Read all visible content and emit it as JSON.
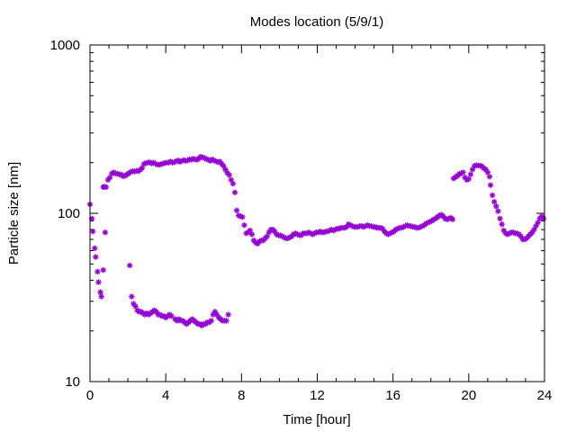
{
  "chart_data": {
    "type": "scatter",
    "title": "Modes location (5/9/1)",
    "xlabel": "Time [hour]",
    "ylabel": "Particle size [nm]",
    "xlim": [
      0,
      24
    ],
    "ylim": [
      10,
      1000
    ],
    "y_scale": "log",
    "grid": false,
    "legend": "none",
    "marker_color": "#9400d3",
    "marker": "asterisk",
    "x_ticks": [
      0,
      4,
      8,
      12,
      16,
      20,
      24
    ],
    "x_tick_labels": [
      "0",
      "4",
      "8",
      "12",
      "16",
      "20",
      "24"
    ],
    "y_ticks": [
      10,
      100,
      1000
    ],
    "y_tick_labels": [
      "10",
      "100",
      "1000"
    ],
    "series": [
      {
        "points": [
          [
            0.0,
            113
          ],
          [
            0.1,
            93
          ],
          [
            0.15,
            78
          ],
          [
            0.25,
            62
          ],
          [
            0.3,
            55
          ],
          [
            0.4,
            45
          ],
          [
            0.45,
            39
          ],
          [
            0.55,
            34
          ],
          [
            0.6,
            32
          ],
          [
            0.7,
            46
          ],
          [
            0.8,
            77
          ],
          [
            0.7,
            143
          ],
          [
            0.75,
            144
          ],
          [
            0.85,
            143
          ],
          [
            0.95,
            158
          ],
          [
            1.05,
            163
          ],
          [
            1.15,
            172
          ],
          [
            1.25,
            175
          ],
          [
            1.35,
            172
          ],
          [
            1.45,
            172
          ],
          [
            1.55,
            170
          ],
          [
            1.65,
            170
          ],
          [
            1.75,
            166
          ],
          [
            1.85,
            167
          ],
          [
            1.95,
            170
          ],
          [
            2.05,
            173
          ],
          [
            2.15,
            176
          ],
          [
            2.25,
            178
          ],
          [
            2.35,
            177
          ],
          [
            2.45,
            179
          ],
          [
            2.55,
            178
          ],
          [
            2.65,
            181
          ],
          [
            2.75,
            186
          ],
          [
            2.85,
            196
          ],
          [
            2.95,
            199
          ],
          [
            3.05,
            200
          ],
          [
            3.15,
            201
          ],
          [
            3.25,
            198
          ],
          [
            3.35,
            200
          ],
          [
            3.45,
            197
          ],
          [
            3.55,
            195
          ],
          [
            3.65,
            194
          ],
          [
            3.75,
            196
          ],
          [
            3.85,
            197
          ],
          [
            3.95,
            199
          ],
          [
            4.05,
            200
          ],
          [
            4.15,
            200
          ],
          [
            4.25,
            203
          ],
          [
            4.35,
            200
          ],
          [
            4.45,
            201
          ],
          [
            4.55,
            204
          ],
          [
            4.65,
            206
          ],
          [
            4.75,
            202
          ],
          [
            4.85,
            205
          ],
          [
            4.95,
            207
          ],
          [
            5.05,
            205
          ],
          [
            5.15,
            206
          ],
          [
            5.25,
            209
          ],
          [
            5.35,
            208
          ],
          [
            5.45,
            211
          ],
          [
            5.55,
            209
          ],
          [
            5.65,
            208
          ],
          [
            5.75,
            212
          ],
          [
            5.85,
            217
          ],
          [
            5.95,
            215
          ],
          [
            6.05,
            213
          ],
          [
            6.15,
            210
          ],
          [
            6.25,
            208
          ],
          [
            6.35,
            205
          ],
          [
            6.45,
            209
          ],
          [
            6.55,
            206
          ],
          [
            6.65,
            204
          ],
          [
            6.75,
            201
          ],
          [
            6.85,
            203
          ],
          [
            6.95,
            197
          ],
          [
            7.05,
            191
          ],
          [
            7.15,
            182
          ],
          [
            7.25,
            174
          ],
          [
            7.35,
            169
          ],
          [
            7.45,
            158
          ],
          [
            7.55,
            150
          ],
          [
            7.65,
            133
          ],
          [
            2.1,
            49
          ],
          [
            2.2,
            32
          ],
          [
            2.3,
            29
          ],
          [
            2.4,
            28
          ],
          [
            2.5,
            26.5
          ],
          [
            2.6,
            26
          ],
          [
            2.7,
            26
          ],
          [
            2.8,
            25.5
          ],
          [
            2.9,
            25
          ],
          [
            3.0,
            25.5
          ],
          [
            3.1,
            25
          ],
          [
            3.2,
            25.5
          ],
          [
            3.3,
            26
          ],
          [
            3.4,
            26.5
          ],
          [
            3.5,
            26
          ],
          [
            3.6,
            25
          ],
          [
            3.7,
            25
          ],
          [
            3.8,
            24.5
          ],
          [
            3.9,
            24.5
          ],
          [
            4.0,
            24
          ],
          [
            4.1,
            24.5
          ],
          [
            4.2,
            25
          ],
          [
            4.3,
            24.5
          ],
          [
            4.5,
            23.5
          ],
          [
            4.6,
            23
          ],
          [
            4.7,
            23.5
          ],
          [
            4.8,
            23
          ],
          [
            4.9,
            23
          ],
          [
            5.0,
            22.5
          ],
          [
            5.1,
            22
          ],
          [
            5.2,
            22.5
          ],
          [
            5.3,
            23
          ],
          [
            5.4,
            23.5
          ],
          [
            5.5,
            23
          ],
          [
            5.6,
            22.5
          ],
          [
            5.7,
            22
          ],
          [
            5.8,
            22
          ],
          [
            5.9,
            21.5
          ],
          [
            6.0,
            22
          ],
          [
            6.1,
            22
          ],
          [
            6.2,
            22.5
          ],
          [
            6.3,
            22.5
          ],
          [
            6.4,
            23
          ],
          [
            6.5,
            25
          ],
          [
            6.6,
            26
          ],
          [
            6.7,
            25
          ],
          [
            6.8,
            24
          ],
          [
            6.9,
            23.5
          ],
          [
            7.0,
            23
          ],
          [
            7.1,
            23
          ],
          [
            7.2,
            23
          ],
          [
            7.3,
            25
          ],
          [
            7.75,
            104
          ],
          [
            7.85,
            97
          ],
          [
            7.95,
            96
          ],
          [
            8.05,
            95
          ],
          [
            8.15,
            85
          ],
          [
            8.25,
            76
          ],
          [
            8.35,
            77
          ],
          [
            8.45,
            79
          ],
          [
            8.55,
            75
          ],
          [
            8.65,
            69
          ],
          [
            8.75,
            67
          ],
          [
            8.85,
            66
          ],
          [
            8.95,
            68
          ],
          [
            9.05,
            69
          ],
          [
            9.15,
            69
          ],
          [
            9.25,
            71
          ],
          [
            9.35,
            73
          ],
          [
            9.45,
            77
          ],
          [
            9.55,
            80
          ],
          [
            9.65,
            80
          ],
          [
            9.75,
            78
          ],
          [
            9.85,
            75
          ],
          [
            9.95,
            74
          ],
          [
            10.05,
            74
          ],
          [
            10.15,
            73
          ],
          [
            10.25,
            72
          ],
          [
            10.35,
            71
          ],
          [
            10.45,
            71
          ],
          [
            10.55,
            72
          ],
          [
            10.65,
            73
          ],
          [
            10.75,
            75
          ],
          [
            10.85,
            76
          ],
          [
            10.95,
            75
          ],
          [
            11.05,
            74
          ],
          [
            11.15,
            74
          ],
          [
            11.25,
            76
          ],
          [
            11.35,
            76
          ],
          [
            11.45,
            76
          ],
          [
            11.55,
            77
          ],
          [
            11.65,
            76
          ],
          [
            11.75,
            75
          ],
          [
            11.85,
            76
          ],
          [
            11.95,
            77
          ],
          [
            12.05,
            77
          ],
          [
            12.15,
            78
          ],
          [
            12.25,
            77
          ],
          [
            12.35,
            77
          ],
          [
            12.45,
            78
          ],
          [
            12.55,
            78
          ],
          [
            12.65,
            79
          ],
          [
            12.75,
            80
          ],
          [
            12.85,
            79
          ],
          [
            12.95,
            80
          ],
          [
            13.05,
            81
          ],
          [
            13.15,
            81
          ],
          [
            13.25,
            82
          ],
          [
            13.35,
            82
          ],
          [
            13.45,
            82
          ],
          [
            13.55,
            83
          ],
          [
            13.65,
            86
          ],
          [
            13.75,
            85
          ],
          [
            13.85,
            84
          ],
          [
            13.95,
            83
          ],
          [
            14.05,
            83
          ],
          [
            14.15,
            83
          ],
          [
            14.25,
            84
          ],
          [
            14.35,
            84
          ],
          [
            14.45,
            83
          ],
          [
            14.55,
            84
          ],
          [
            14.65,
            85
          ],
          [
            14.75,
            84
          ],
          [
            14.85,
            84
          ],
          [
            14.95,
            83
          ],
          [
            15.05,
            83
          ],
          [
            15.15,
            82
          ],
          [
            15.25,
            82
          ],
          [
            15.35,
            82
          ],
          [
            15.45,
            81
          ],
          [
            15.55,
            78
          ],
          [
            15.65,
            76
          ],
          [
            15.75,
            75
          ],
          [
            15.85,
            76
          ],
          [
            15.95,
            77
          ],
          [
            16.05,
            78
          ],
          [
            16.15,
            80
          ],
          [
            16.25,
            81
          ],
          [
            16.35,
            82
          ],
          [
            16.45,
            82
          ],
          [
            16.55,
            83
          ],
          [
            16.65,
            84
          ],
          [
            16.75,
            85
          ],
          [
            16.85,
            84
          ],
          [
            16.95,
            84
          ],
          [
            17.05,
            83
          ],
          [
            17.15,
            83
          ],
          [
            17.25,
            82
          ],
          [
            17.35,
            82
          ],
          [
            17.45,
            83
          ],
          [
            17.55,
            84
          ],
          [
            17.65,
            85
          ],
          [
            17.75,
            87
          ],
          [
            17.85,
            88
          ],
          [
            17.95,
            89
          ],
          [
            18.05,
            90
          ],
          [
            18.15,
            92
          ],
          [
            18.25,
            93
          ],
          [
            18.35,
            95
          ],
          [
            18.45,
            97
          ],
          [
            18.55,
            98
          ],
          [
            18.65,
            96
          ],
          [
            18.75,
            93
          ],
          [
            18.85,
            92
          ],
          [
            18.95,
            93
          ],
          [
            19.05,
            94
          ],
          [
            19.15,
            92
          ],
          [
            19.2,
            161
          ],
          [
            19.3,
            164
          ],
          [
            19.4,
            167
          ],
          [
            19.5,
            171
          ],
          [
            19.6,
            173
          ],
          [
            19.7,
            175
          ],
          [
            19.8,
            163
          ],
          [
            19.9,
            158
          ],
          [
            20.0,
            160
          ],
          [
            20.1,
            170
          ],
          [
            20.2,
            182
          ],
          [
            20.3,
            191
          ],
          [
            20.4,
            193
          ],
          [
            20.5,
            192
          ],
          [
            20.6,
            192
          ],
          [
            20.7,
            190
          ],
          [
            20.8,
            185
          ],
          [
            20.9,
            182
          ],
          [
            21.0,
            175
          ],
          [
            21.1,
            165
          ],
          [
            21.15,
            147
          ],
          [
            21.25,
            128
          ],
          [
            21.35,
            117
          ],
          [
            21.45,
            110
          ],
          [
            21.55,
            103
          ],
          [
            21.65,
            93
          ],
          [
            21.75,
            86
          ],
          [
            21.85,
            79
          ],
          [
            21.95,
            76
          ],
          [
            22.05,
            75
          ],
          [
            22.15,
            76
          ],
          [
            22.25,
            77
          ],
          [
            22.35,
            77
          ],
          [
            22.45,
            76
          ],
          [
            22.55,
            76
          ],
          [
            22.65,
            75
          ],
          [
            22.75,
            73
          ],
          [
            22.85,
            70
          ],
          [
            22.95,
            70
          ],
          [
            23.05,
            71
          ],
          [
            23.15,
            73
          ],
          [
            23.25,
            75
          ],
          [
            23.35,
            77
          ],
          [
            23.45,
            80
          ],
          [
            23.55,
            84
          ],
          [
            23.65,
            88
          ],
          [
            23.75,
            93
          ],
          [
            23.85,
            96
          ],
          [
            23.95,
            93
          ]
        ]
      }
    ]
  }
}
